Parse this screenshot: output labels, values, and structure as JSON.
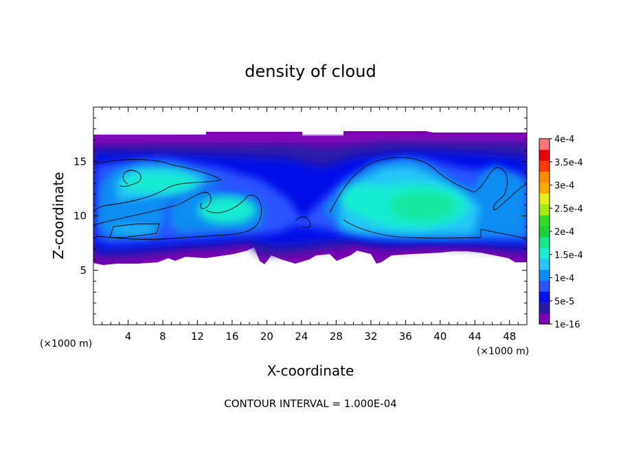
{
  "chart_data": {
    "type": "heatmap",
    "title": "density of cloud",
    "xlabel": "X-coordinate",
    "ylabel": "Z-coordinate",
    "x_unit": "(×1000 m)",
    "y_unit": "(×1000 m)",
    "footer": "CONTOUR INTERVAL = 1.000E-04",
    "xlim": [
      0,
      50
    ],
    "ylim": [
      0,
      20
    ],
    "x_ticks": [
      "4",
      "8",
      "12",
      "16",
      "20",
      "24",
      "28",
      "32",
      "36",
      "40",
      "44",
      "48"
    ],
    "y_ticks": [
      "5",
      "10",
      "15"
    ],
    "colorbar": {
      "labels": [
        "1e-16",
        "5e-5",
        "1e-4",
        "1.5e-4",
        "2e-4",
        "2.5e-4",
        "3e-4",
        "3.5e-4",
        "4e-4"
      ],
      "colors": [
        "#7a00b0",
        "#2a1aa8",
        "#0010e8",
        "#2a52ff",
        "#0a8cf2",
        "#28c6f8",
        "#18ecd2",
        "#14e68c",
        "#1ad23c",
        "#32dc28",
        "#a6ec14",
        "#e6ec14",
        "#ffaa00",
        "#ff8c00",
        "#ff3c00",
        "#e60000",
        "#ff7878"
      ],
      "min": 0,
      "max": 0.0004
    },
    "contour_interval": 0.0001,
    "cloud_regions": [
      {
        "x_range": [
          0,
          50
        ],
        "z_range": [
          5.5,
          17.5
        ],
        "density": "1e-16"
      },
      {
        "x_range": [
          2,
          15
        ],
        "z_range": [
          9,
          15
        ],
        "density": "1e-4"
      },
      {
        "x_range": [
          10,
          19
        ],
        "z_range": [
          8,
          12
        ],
        "density": "1.5e-4"
      },
      {
        "x_range": [
          27,
          44
        ],
        "z_range": [
          8,
          15.5
        ],
        "density": "1.5e-4"
      },
      {
        "x_range": [
          45,
          50
        ],
        "z_range": [
          8,
          13
        ],
        "density": "1e-4"
      }
    ]
  }
}
